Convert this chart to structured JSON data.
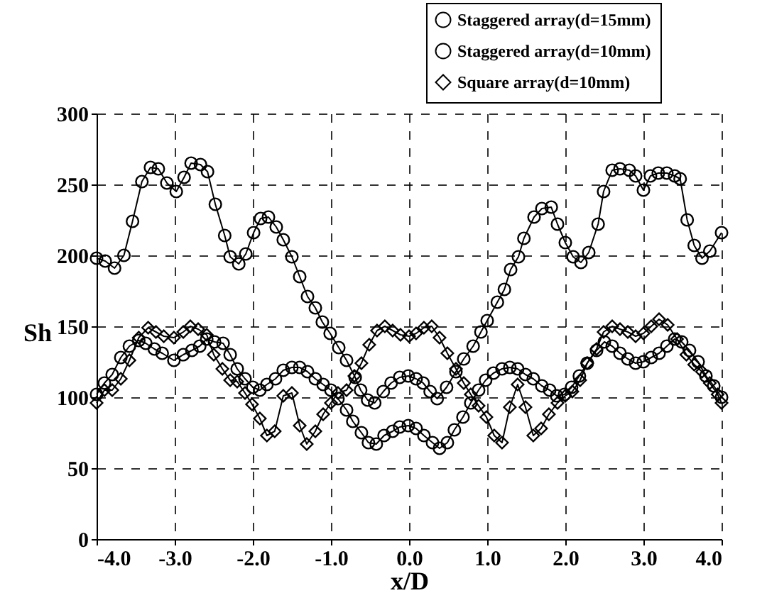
{
  "chart_data": {
    "type": "line",
    "xlabel": "x/D",
    "ylabel": "Sh",
    "xlim": [
      -4,
      4
    ],
    "ylim": [
      0,
      300
    ],
    "xticks": [
      {
        "value": -4,
        "label": "-4.0"
      },
      {
        "value": -3,
        "label": "-3.0"
      },
      {
        "value": -2,
        "label": "-2.0"
      },
      {
        "value": -1,
        "label": "-1.0"
      },
      {
        "value": 0,
        "label": "0.0"
      },
      {
        "value": 1,
        "label": "1.0"
      },
      {
        "value": 2,
        "label": "2.0"
      },
      {
        "value": 3,
        "label": "3.0"
      },
      {
        "value": 4,
        "label": "4.0"
      }
    ],
    "yticks": [
      0,
      50,
      100,
      150,
      200,
      250,
      300
    ],
    "grid": true,
    "legend": "top right",
    "line_style": "solid",
    "series": [
      {
        "name": "Staggered array(d=15mm)",
        "color": "#000000",
        "marker": "circle",
        "x": [
          -4,
          -3.9,
          -3.8,
          -3.69,
          -3.58,
          -3.46,
          -3.37,
          -3.26,
          -3.16,
          -3.01,
          -2.89,
          -2.78,
          -2.68,
          -2.59,
          -2.49,
          -2.38,
          -2.29,
          -2.2,
          -2.1,
          -2.0,
          -1.91,
          -1.82,
          -1.71,
          -1.61,
          -1.5,
          -1.4,
          -1.3,
          -1.2,
          -1.1,
          -1.0,
          -0.91,
          -0.8,
          -0.72,
          -0.61,
          -0.52,
          -0.42,
          -0.32,
          -0.21,
          -0.12,
          -0.01,
          0.09,
          0.19,
          0.3,
          0.39,
          0.49,
          0.58,
          0.69,
          0.79,
          0.89,
          0.98,
          1.08,
          1.19,
          1.29,
          1.39,
          1.49,
          1.59,
          1.7,
          1.8,
          1.89,
          1.99,
          2.08,
          2.18,
          2.28,
          2.4,
          2.5,
          2.6,
          2.7,
          2.8,
          2.9,
          3.0,
          3.1,
          3.2,
          3.3,
          3.4,
          3.49,
          3.59,
          3.7,
          3.8,
          3.9,
          4.0
        ],
        "values": [
          102,
          110,
          116,
          128,
          136,
          140,
          138,
          134,
          131,
          126,
          130,
          133,
          136,
          141,
          139,
          138,
          130,
          120,
          113,
          107,
          105,
          109,
          113,
          119,
          121,
          121,
          118,
          113,
          109,
          105,
          99,
          91,
          83,
          75,
          68,
          67,
          73,
          76,
          79,
          80,
          78,
          73,
          68,
          64,
          68,
          77,
          86,
          96,
          105,
          112,
          117,
          120,
          121,
          120,
          116,
          113,
          108,
          105,
          101,
          102,
          107,
          115,
          124,
          133,
          139,
          136,
          131,
          127,
          124,
          125,
          128,
          131,
          136,
          141,
          139,
          133,
          125,
          115,
          108,
          100
        ]
      },
      {
        "name": "Staggered array(d=10mm)",
        "color": "#000000",
        "marker": "circle",
        "x": [
          -4,
          -3.89,
          -3.77,
          -3.65,
          -3.54,
          -3.42,
          -3.31,
          -3.21,
          -3.1,
          -2.98,
          -2.88,
          -2.79,
          -2.67,
          -2.58,
          -2.48,
          -2.36,
          -2.29,
          -2.18,
          -2.09,
          -1.99,
          -1.9,
          -1.8,
          -1.7,
          -1.61,
          -1.5,
          -1.4,
          -1.3,
          -1.2,
          -1.11,
          -1.01,
          -0.9,
          -0.8,
          -0.69,
          -0.62,
          -0.53,
          -0.44,
          -0.33,
          -0.23,
          -0.12,
          -0.01,
          0.09,
          0.18,
          0.27,
          0.36,
          0.48,
          0.6,
          0.7,
          0.82,
          0.92,
          1.0,
          1.13,
          1.22,
          1.3,
          1.4,
          1.47,
          1.6,
          1.7,
          1.82,
          1.9,
          2.0,
          2.1,
          2.2,
          2.3,
          2.42,
          2.49,
          2.6,
          2.7,
          2.82,
          2.9,
          3.0,
          3.09,
          3.19,
          3.3,
          3.4,
          3.47,
          3.56,
          3.65,
          3.75,
          3.85,
          4.0
        ],
        "values": [
          198,
          196,
          191,
          200,
          224,
          252,
          262,
          261,
          251,
          245,
          255,
          265,
          264,
          259,
          236,
          214,
          199,
          194,
          201,
          216,
          226,
          227,
          220,
          211,
          199,
          185,
          171,
          163,
          153,
          145,
          135,
          126,
          114,
          105,
          98,
          96,
          104,
          110,
          114,
          115,
          113,
          110,
          104,
          99,
          107,
          118,
          127,
          136,
          146,
          154,
          167,
          176,
          190,
          199,
          212,
          227,
          233,
          234,
          222,
          209,
          199,
          195,
          202,
          222,
          245,
          260,
          261,
          260,
          256,
          246,
          256,
          258,
          258,
          256,
          254,
          225,
          207,
          198,
          203,
          216
        ]
      },
      {
        "name": "Square array(d=10mm)",
        "color": "#000000",
        "marker": "diamond",
        "x": [
          -4,
          -3.9,
          -3.8,
          -3.69,
          -3.58,
          -3.46,
          -3.34,
          -3.24,
          -3.14,
          -3.01,
          -2.89,
          -2.8,
          -2.7,
          -2.59,
          -2.5,
          -2.39,
          -2.29,
          -2.2,
          -2.1,
          -2.01,
          -1.91,
          -1.82,
          -1.72,
          -1.61,
          -1.5,
          -1.4,
          -1.31,
          -1.2,
          -1.1,
          -1.0,
          -0.91,
          -0.8,
          -0.7,
          -0.61,
          -0.51,
          -0.41,
          -0.31,
          -0.21,
          -0.11,
          0.0,
          0.09,
          0.19,
          0.29,
          0.39,
          0.49,
          0.6,
          0.7,
          0.79,
          0.89,
          0.99,
          1.09,
          1.19,
          1.29,
          1.39,
          1.49,
          1.59,
          1.69,
          1.79,
          1.9,
          2.0,
          2.09,
          2.19,
          2.28,
          2.4,
          2.49,
          2.6,
          2.7,
          2.8,
          2.9,
          3.0,
          3.1,
          3.2,
          3.31,
          3.43,
          3.55,
          3.65,
          3.75,
          3.85,
          3.95,
          4.0
        ],
        "values": [
          96,
          105,
          105,
          113,
          126,
          142,
          149,
          146,
          143,
          142,
          146,
          150,
          148,
          144,
          130,
          120,
          112,
          111,
          103,
          95,
          85,
          73,
          76,
          101,
          103,
          80,
          67,
          76,
          88,
          96,
          103,
          105,
          115,
          124,
          137,
          147,
          150,
          147,
          144,
          143,
          145,
          149,
          150,
          142,
          131,
          120,
          110,
          102,
          94,
          86,
          73,
          68,
          93,
          109,
          93,
          73,
          78,
          88,
          96,
          101,
          104,
          112,
          124,
          134,
          146,
          150,
          148,
          146,
          143,
          145,
          150,
          155,
          151,
          141,
          130,
          123,
          118,
          110,
          102,
          96
        ]
      }
    ]
  }
}
